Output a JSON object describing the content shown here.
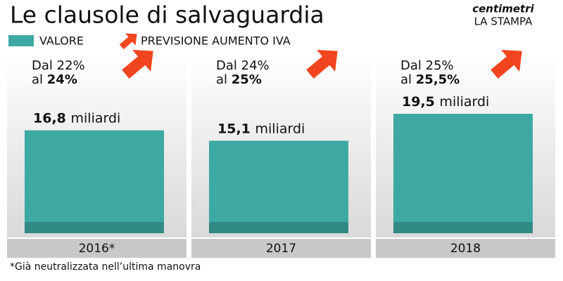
{
  "chart_data": {
    "type": "bar",
    "title": "Le clausole di salvaguardia",
    "source": [
      "centimetri",
      "LA STAMPA"
    ],
    "legend": [
      "VALORE",
      "PREVISIONE AUMENTO IVA"
    ],
    "categories": [
      "2016*",
      "2017",
      "2018"
    ],
    "values": [
      16.8,
      15.1,
      19.5
    ],
    "value_labels": [
      "16,8 miliardi",
      "15,1 miliardi",
      "19,5 miliardi"
    ],
    "color": "#3ea9a3",
    "arrow_color": "#f0451f",
    "annotations": [
      {
        "from": "Dal 22%",
        "to": "al 24%"
      },
      {
        "from": "Dal 24%",
        "to": "al 25%"
      },
      {
        "from": "Dal 25%",
        "to": "al 25,5%"
      }
    ],
    "footnote": "*Già neutralizzata nell’ultima manovra"
  }
}
